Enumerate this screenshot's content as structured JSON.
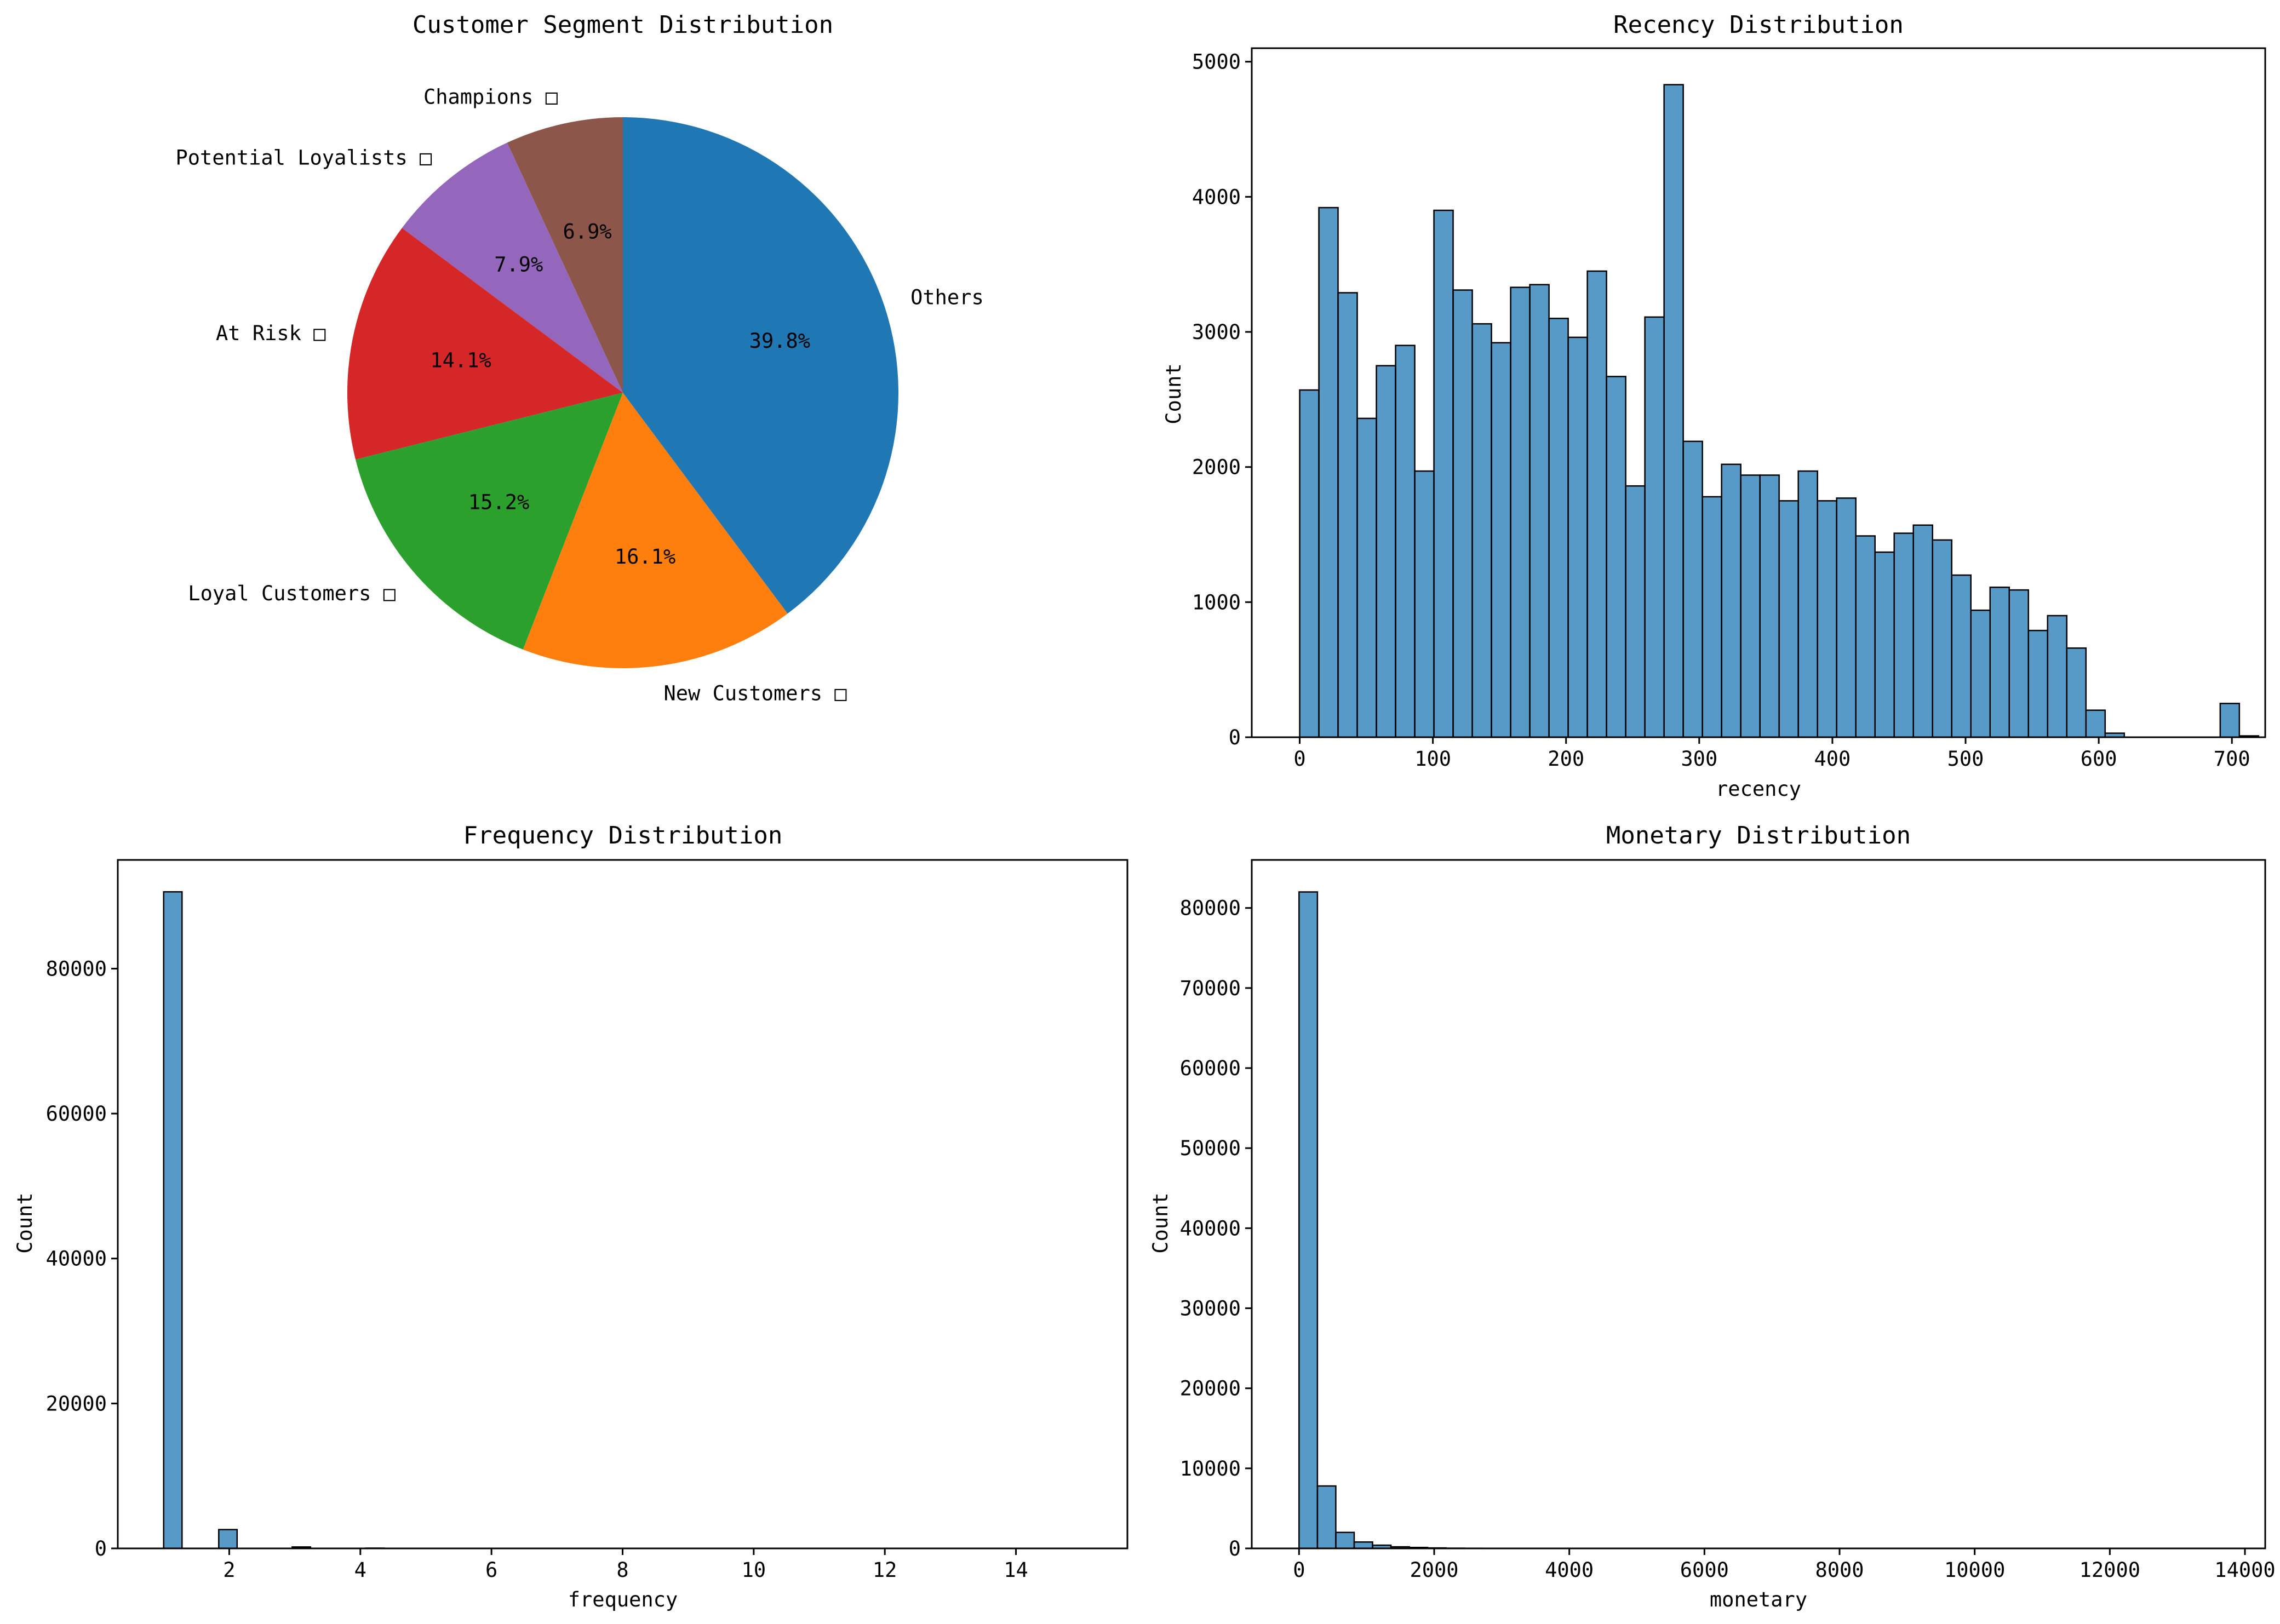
{
  "chart_data": [
    {
      "type": "pie",
      "title": "Customer Segment Distribution",
      "slices": [
        {
          "label": "Champions □",
          "value": 6.9,
          "pct": "6.9%",
          "color": "#8c564b"
        },
        {
          "label": "Potential Loyalists □",
          "value": 7.9,
          "pct": "7.9%",
          "color": "#9467bd"
        },
        {
          "label": "At Risk □",
          "value": 14.1,
          "pct": "14.1%",
          "color": "#d62728"
        },
        {
          "label": "Loyal Customers □",
          "value": 15.2,
          "pct": "15.2%",
          "color": "#2ca02c"
        },
        {
          "label": "New Customers □",
          "value": 16.1,
          "pct": "16.1%",
          "color": "#ff7f0e"
        },
        {
          "label": "Others",
          "value": 39.8,
          "pct": "39.8%",
          "color": "#1f77b4"
        }
      ]
    },
    {
      "type": "bar",
      "title": "Recency Distribution",
      "xlabel": "recency",
      "ylabel": "Count",
      "xlim": [
        -36,
        725
      ],
      "ylim": [
        0,
        5100
      ],
      "xticks": [
        0,
        100,
        200,
        300,
        400,
        500,
        600,
        700
      ],
      "yticks": [
        0,
        1000,
        2000,
        3000,
        4000,
        5000
      ],
      "bin_start": 0,
      "bin_width": 14.4,
      "values": [
        2570,
        3920,
        3290,
        2360,
        2750,
        2900,
        1970,
        3900,
        3310,
        3060,
        2920,
        3330,
        3350,
        3100,
        2960,
        3450,
        2670,
        1860,
        3110,
        4830,
        2190,
        1780,
        2020,
        1940,
        1940,
        1750,
        1970,
        1750,
        1770,
        1490,
        1370,
        1510,
        1570,
        1460,
        1200,
        940,
        1110,
        1090,
        790,
        900,
        660,
        200,
        30,
        0,
        0,
        0,
        0,
        0,
        250,
        10
      ],
      "bar_color": "#1f77b4"
    },
    {
      "type": "bar",
      "title": "Frequency Distribution",
      "xlabel": "frequency",
      "ylabel": "Count",
      "xlim": [
        0.3,
        15.7
      ],
      "ylim": [
        0,
        95000
      ],
      "xticks": [
        2,
        4,
        6,
        8,
        10,
        12,
        14
      ],
      "yticks": [
        0,
        20000,
        40000,
        60000,
        80000
      ],
      "bin_start": 1,
      "bin_width": 0.28,
      "values": [
        90600,
        0,
        0,
        2600,
        0,
        0,
        0,
        200,
        0,
        0,
        0,
        40,
        0,
        0,
        0,
        20,
        0,
        0,
        10,
        0,
        0,
        0,
        5,
        0,
        0,
        0,
        5,
        0,
        0,
        0
      ],
      "bar_color": "#1f77b4"
    },
    {
      "type": "bar",
      "title": "Monetary Distribution",
      "xlabel": "monetary",
      "ylabel": "Count",
      "xlim": [
        -700,
        14300
      ],
      "ylim": [
        0,
        86000
      ],
      "xticks": [
        0,
        2000,
        4000,
        6000,
        8000,
        10000,
        12000,
        14000
      ],
      "yticks": [
        0,
        10000,
        20000,
        30000,
        40000,
        50000,
        60000,
        70000,
        80000
      ],
      "bin_start": 0,
      "bin_width": 272,
      "values": [
        82000,
        7800,
        2000,
        800,
        400,
        200,
        120,
        60,
        30,
        20,
        10,
        5
      ],
      "bar_color": "#1f77b4"
    }
  ]
}
